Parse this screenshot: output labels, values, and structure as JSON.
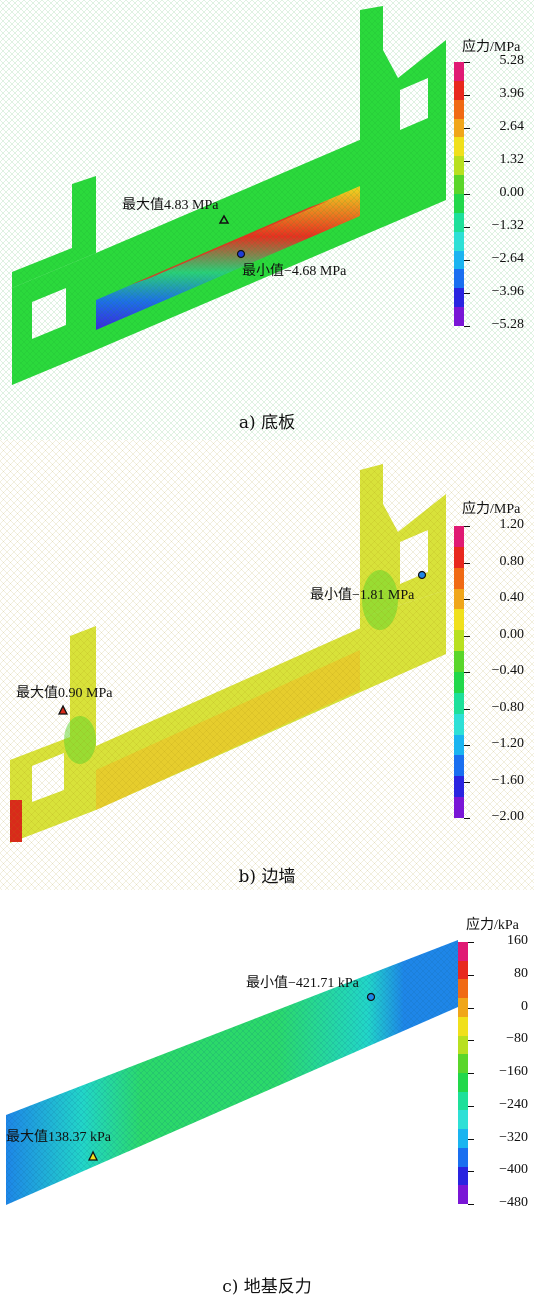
{
  "colors": {
    "scale": [
      "#7a16d6",
      "#2a24e0",
      "#1a6ff0",
      "#1ab4f0",
      "#2ee0d6",
      "#1ee09a",
      "#22d84a",
      "#5ad62a",
      "#b8e020",
      "#f0e01c",
      "#f0a61a",
      "#f06a14",
      "#e8281e",
      "#e01a74"
    ],
    "mesh_green": "#2bd93c",
    "mesh_yellow": "#d8e23a",
    "mesh_orange": "#f0a020",
    "mesh_red": "#d92a1a",
    "mesh_cyan": "#22d6c8",
    "mesh_blue": "#1e86e8"
  },
  "panels": [
    {
      "caption": "a) 底板",
      "colorbar_title": "应力/MPa",
      "ticks": [
        "5.28",
        "3.96",
        "2.64",
        "1.32",
        "0.00",
        "−1.32",
        "−2.64",
        "−3.96",
        "−5.28"
      ],
      "max_label": "最大值4.83 MPa",
      "min_label": "最小值−4.68 MPa",
      "max_marker": "triangle-icon",
      "min_marker": "circle-icon"
    },
    {
      "caption": "b) 边墙",
      "colorbar_title": "应力/MPa",
      "ticks": [
        "1.20",
        "0.80",
        "0.40",
        "0.00",
        "−0.40",
        "−0.80",
        "−1.20",
        "−1.60",
        "−2.00"
      ],
      "max_label": "最大值0.90 MPa",
      "min_label": "最小值−1.81 MPa",
      "max_marker": "triangle-icon",
      "min_marker": "circle-icon"
    },
    {
      "caption": "c) 地基反力",
      "colorbar_title": "应力/kPa",
      "ticks": [
        "160",
        "80",
        "0",
        "−80",
        "−160",
        "−240",
        "−320",
        "−400",
        "−480"
      ],
      "max_label": "最大值138.37 kPa",
      "min_label": "最小值−421.71 kPa",
      "max_marker": "triangle-icon",
      "min_marker": "circle-icon"
    }
  ]
}
